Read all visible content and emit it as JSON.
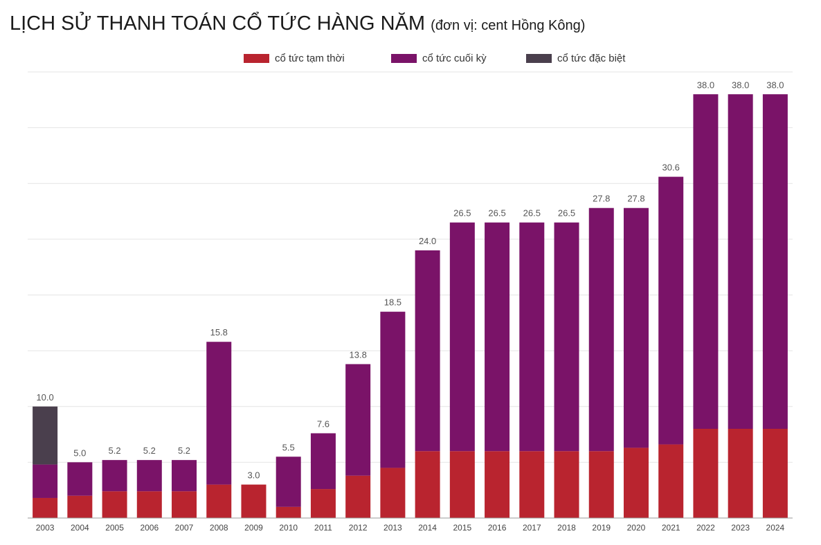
{
  "title": {
    "main": "LỊCH SỬ THANH TOÁN CỔ TỨC HÀNG NĂM",
    "unit": "(đơn vị: cent Hồng Kông)"
  },
  "colors": {
    "interim": "#b9242f",
    "final": "#7a1368",
    "special": "#4a3f4d",
    "grid": "#e4e4e4",
    "axis": "#9a9a9a"
  },
  "chart_data": {
    "type": "bar",
    "stacked": true,
    "title": "LỊCH SỬ THANH TOÁN CỔ TỨC HÀNG NĂM (đơn vị: cent Hồng Kông)",
    "xlabel": "",
    "ylabel": "",
    "ylim": [
      0,
      40
    ],
    "grid": true,
    "legend_position": "top-center",
    "categories": [
      "2003",
      "2004",
      "2005",
      "2006",
      "2007",
      "2008",
      "2009",
      "2010",
      "2011",
      "2012",
      "2013",
      "2014",
      "2015",
      "2016",
      "2017",
      "2018",
      "2019",
      "2020",
      "2021",
      "2022",
      "2023",
      "2024"
    ],
    "series": [
      {
        "name": "cổ tức tạm thời",
        "key": "interim",
        "values": [
          1.8,
          2.0,
          2.4,
          2.4,
          2.4,
          3.0,
          3.0,
          1.0,
          2.6,
          3.8,
          4.5,
          6.0,
          6.0,
          6.0,
          6.0,
          6.0,
          6.0,
          6.3,
          6.6,
          8.0,
          8.0,
          8.0
        ]
      },
      {
        "name": "cổ tức cuối kỳ",
        "key": "final",
        "values": [
          3.0,
          3.0,
          2.8,
          2.8,
          2.8,
          12.8,
          0.0,
          4.5,
          5.0,
          10.0,
          14.0,
          18.0,
          20.5,
          20.5,
          20.5,
          20.5,
          21.8,
          21.5,
          24.0,
          30.0,
          30.0,
          30.0
        ]
      },
      {
        "name": "cổ tức đặc biệt",
        "key": "special",
        "values": [
          5.2,
          0,
          0,
          0,
          0,
          0,
          0,
          0,
          0,
          0,
          0,
          0,
          0,
          0,
          0,
          0,
          0,
          0,
          0,
          0,
          0,
          0
        ]
      }
    ],
    "totals": [
      "10.0",
      "5.0",
      "5.2",
      "5.2",
      "5.2",
      "15.8",
      "3.0",
      "5.5",
      "7.6",
      "13.8",
      "18.5",
      "24.0",
      "26.5",
      "26.5",
      "26.5",
      "26.5",
      "27.8",
      "27.8",
      "30.6",
      "38.0",
      "38.0",
      "38.0"
    ]
  }
}
